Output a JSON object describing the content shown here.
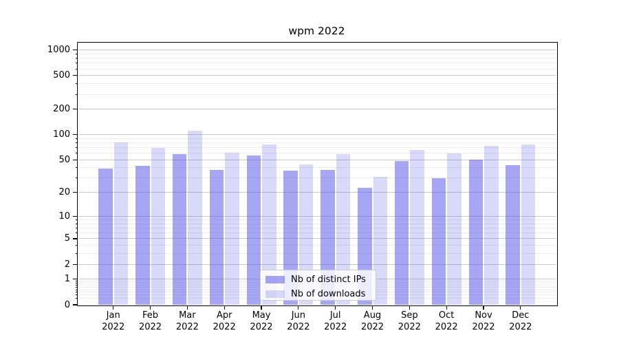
{
  "chart_data": {
    "type": "bar",
    "title": "wpm 2022",
    "categories": [
      "Jan",
      "Feb",
      "Mar",
      "Apr",
      "May",
      "Jun",
      "Jul",
      "Aug",
      "Sep",
      "Oct",
      "Nov",
      "Dec"
    ],
    "x_tick_year": "2022",
    "series": [
      {
        "name": "Nb of distinct IPs",
        "values": [
          39,
          42,
          59,
          38,
          56,
          37,
          38,
          23,
          48,
          30,
          50,
          43
        ],
        "color": "rgba(85,85,230,0.52)"
      },
      {
        "name": "Nb of downloads",
        "values": [
          81,
          70,
          111,
          61,
          77,
          44,
          59,
          31,
          66,
          60,
          74,
          77
        ],
        "color": "rgba(85,85,230,0.225)"
      }
    ],
    "y_axis": {
      "scale": "log10(1+v)",
      "major_ticks": [
        0,
        1,
        2,
        5,
        10,
        20,
        50,
        100,
        200,
        500,
        1000
      ],
      "minor_ticks": [
        0.2,
        0.3,
        0.4,
        0.5,
        0.6,
        0.7,
        0.8,
        0.9,
        3,
        4,
        6,
        7,
        8,
        9,
        30,
        40,
        60,
        70,
        80,
        90,
        300,
        400,
        600,
        700,
        800,
        900
      ],
      "ylim_top": 1250
    },
    "xlabel": "",
    "ylabel": "",
    "grid": "on",
    "legend_position": "lower-center",
    "colors": {
      "bar_base": "#5555e6",
      "grid_major": "#c8c8c8",
      "grid_minor": "#ececec",
      "axis": "#000000",
      "background": "#ffffff"
    }
  }
}
